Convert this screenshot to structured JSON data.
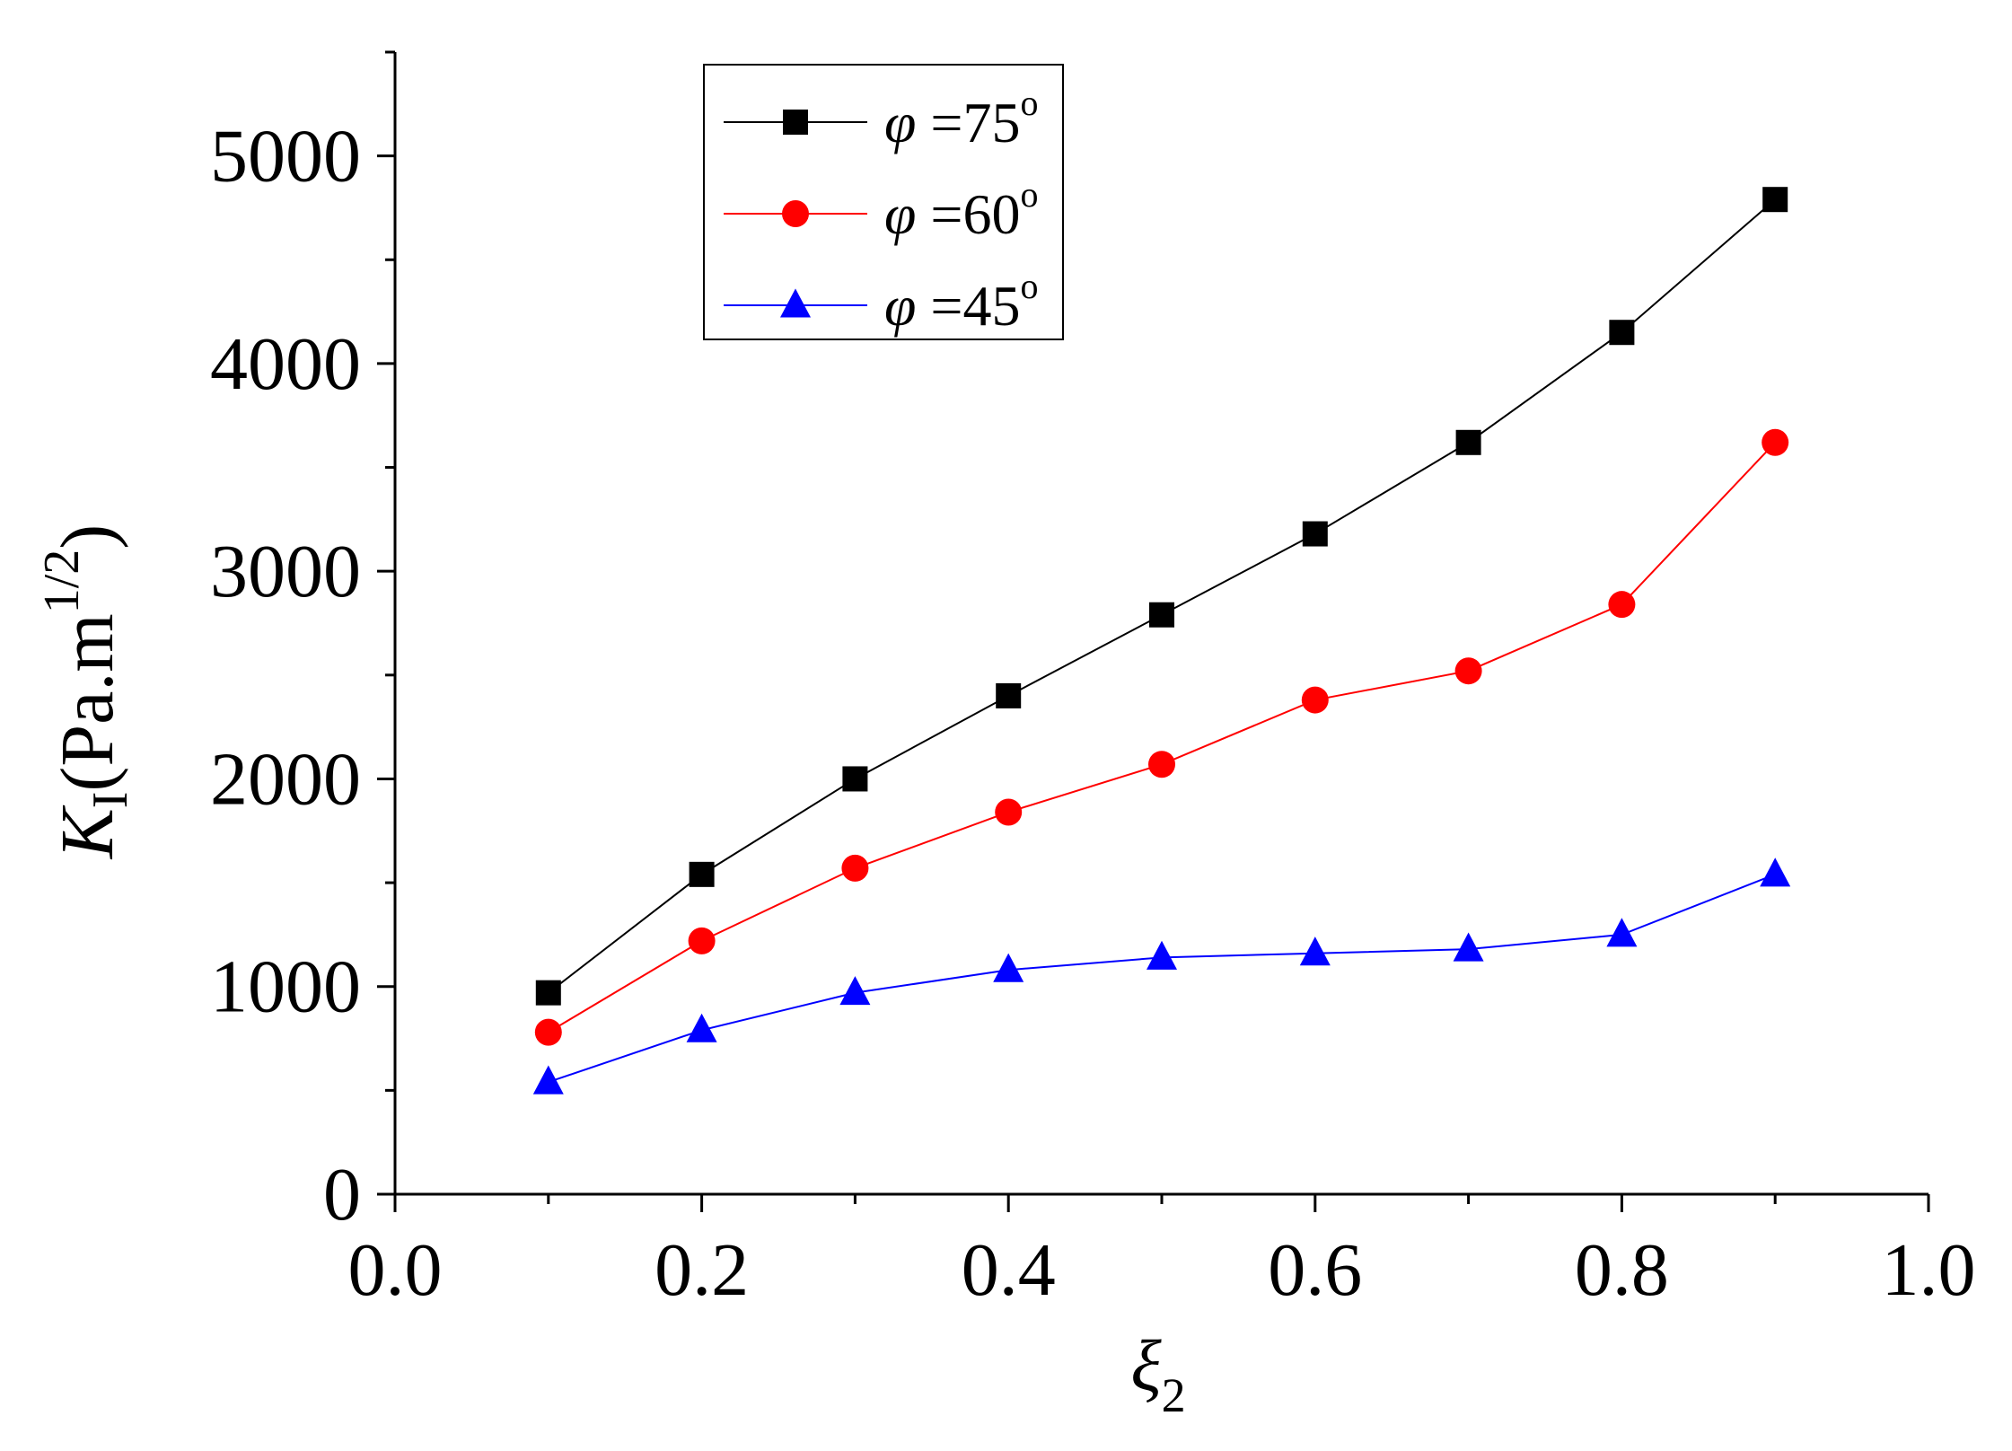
{
  "chart_data": {
    "type": "line",
    "title": "",
    "x": [
      0.1,
      0.2,
      0.3,
      0.4,
      0.5,
      0.6,
      0.7,
      0.8,
      0.9
    ],
    "xlim": [
      0.0,
      1.0
    ],
    "ylim": [
      0,
      5500
    ],
    "x_ticks": [
      "0.0",
      "0.2",
      "0.4",
      "0.6",
      "0.8",
      "1.0"
    ],
    "y_ticks": [
      "0",
      "1000",
      "2000",
      "3000",
      "4000",
      "5000"
    ],
    "xlabel": {
      "base": "ξ",
      "sub": "2"
    },
    "ylabel": {
      "var": "K",
      "sub": "I",
      "unit_open": "(Pa.m",
      "sup": "1/2",
      "unit_close": ")"
    },
    "grid": false,
    "legend_position": "top-left",
    "series": [
      {
        "name": "φ =75",
        "symbol": "φ",
        "rel": " =75",
        "deg": "o",
        "marker": "square",
        "color": "#000000",
        "values": [
          970,
          1540,
          2000,
          2400,
          2790,
          3180,
          3620,
          4150,
          4790
        ]
      },
      {
        "name": "φ =60",
        "symbol": "φ",
        "rel": " =60",
        "deg": "o",
        "marker": "circle",
        "color": "#ff0000",
        "values": [
          780,
          1220,
          1570,
          1840,
          2070,
          2380,
          2520,
          2840,
          3620
        ]
      },
      {
        "name": "φ =45",
        "symbol": "φ",
        "rel": " =45",
        "deg": "o",
        "marker": "triangle",
        "color": "#0000ff",
        "values": [
          540,
          790,
          970,
          1080,
          1140,
          1160,
          1180,
          1250,
          1540
        ]
      }
    ]
  }
}
